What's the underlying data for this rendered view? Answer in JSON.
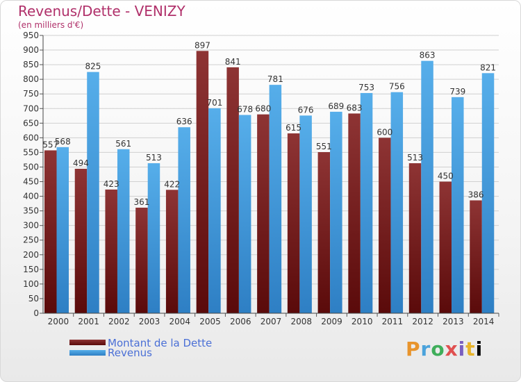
{
  "header": {
    "title": "Revenus/Dette - VENIZY",
    "subtitle": "(en milliers d'€)"
  },
  "legend": {
    "debt_label": "Montant de la Dette",
    "revenue_label": "Revenus"
  },
  "logo": {
    "text": "Proxiti"
  },
  "colors": {
    "debt": "#8b2a2a",
    "revenue": "#4ba3e3",
    "title": "#b0306a"
  },
  "chart_data": {
    "type": "bar",
    "categories": [
      "2000",
      "2001",
      "2002",
      "2003",
      "2004",
      "2005",
      "2006",
      "2007",
      "2008",
      "2009",
      "2010",
      "2011",
      "2012",
      "2013",
      "2014"
    ],
    "series": [
      {
        "name": "Montant de la Dette",
        "values": [
          557,
          494,
          423,
          361,
          422,
          897,
          841,
          680,
          615,
          551,
          683,
          600,
          513,
          450,
          386
        ]
      },
      {
        "name": "Revenus",
        "values": [
          568,
          825,
          561,
          513,
          636,
          701,
          678,
          781,
          676,
          689,
          753,
          756,
          863,
          739,
          821
        ]
      }
    ],
    "ylim": [
      0,
      950
    ],
    "ytick_step": 50,
    "grid": true
  }
}
